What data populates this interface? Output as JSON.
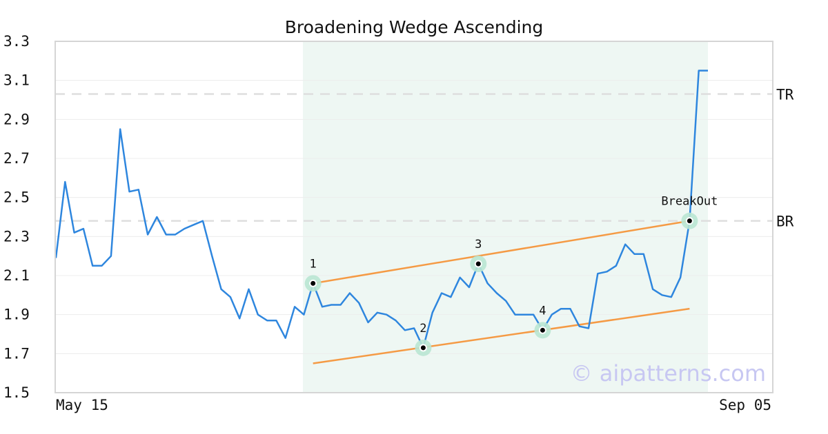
{
  "chart_data": {
    "type": "line",
    "title": "Broadening Wedge Ascending",
    "watermark": "© aipatterns.com",
    "x_tick_labels": [
      "May 15",
      "Sep 05"
    ],
    "y_ticks": [
      1.5,
      1.7,
      1.9,
      2.1,
      2.3,
      2.5,
      2.7,
      2.9,
      3.1,
      3.3
    ],
    "ylim": [
      1.5,
      3.3
    ],
    "grid": true,
    "series": [
      {
        "color": "#2e86de",
        "values": [
          2.19,
          2.58,
          2.32,
          2.34,
          2.15,
          2.15,
          2.2,
          2.85,
          2.53,
          2.54,
          2.31,
          2.4,
          2.31,
          2.31,
          2.34,
          2.36,
          2.38,
          2.2,
          2.03,
          1.99,
          1.88,
          2.03,
          1.9,
          1.87,
          1.87,
          1.78,
          1.94,
          1.9,
          2.06,
          1.94,
          1.95,
          1.95,
          2.01,
          1.96,
          1.86,
          1.91,
          1.9,
          1.87,
          1.82,
          1.83,
          1.73,
          1.91,
          2.01,
          1.99,
          2.09,
          2.04,
          2.16,
          2.06,
          2.01,
          1.97,
          1.9,
          1.9,
          1.9,
          1.82,
          1.9,
          1.93,
          1.93,
          1.84,
          1.83,
          2.11,
          2.12,
          2.15,
          2.26,
          2.21,
          2.21,
          2.03,
          2.0,
          1.99,
          2.09,
          2.38,
          3.15,
          3.15
        ]
      }
    ],
    "pattern_region": {
      "start_index": 26,
      "end_index": 71,
      "color": "#eef7f3"
    },
    "trendlines": [
      {
        "color": "#f59a44",
        "from": {
          "index": 28,
          "value": 2.06
        },
        "to": {
          "index": 69,
          "value": 2.38
        }
      },
      {
        "color": "#f59a44",
        "from": {
          "index": 28,
          "value": 1.65
        },
        "to": {
          "index": 69,
          "value": 1.93
        }
      }
    ],
    "pivots": [
      {
        "label": "1",
        "index": 28,
        "value": 2.06
      },
      {
        "label": "2",
        "index": 40,
        "value": 1.73
      },
      {
        "label": "3",
        "index": 46,
        "value": 2.16
      },
      {
        "label": "4",
        "index": 53,
        "value": 1.82
      },
      {
        "label": "BreakOut",
        "index": 69,
        "value": 2.38
      }
    ],
    "reference_lines": [
      {
        "label": "TR",
        "value": 3.03
      },
      {
        "label": "BR",
        "value": 2.38
      }
    ]
  }
}
